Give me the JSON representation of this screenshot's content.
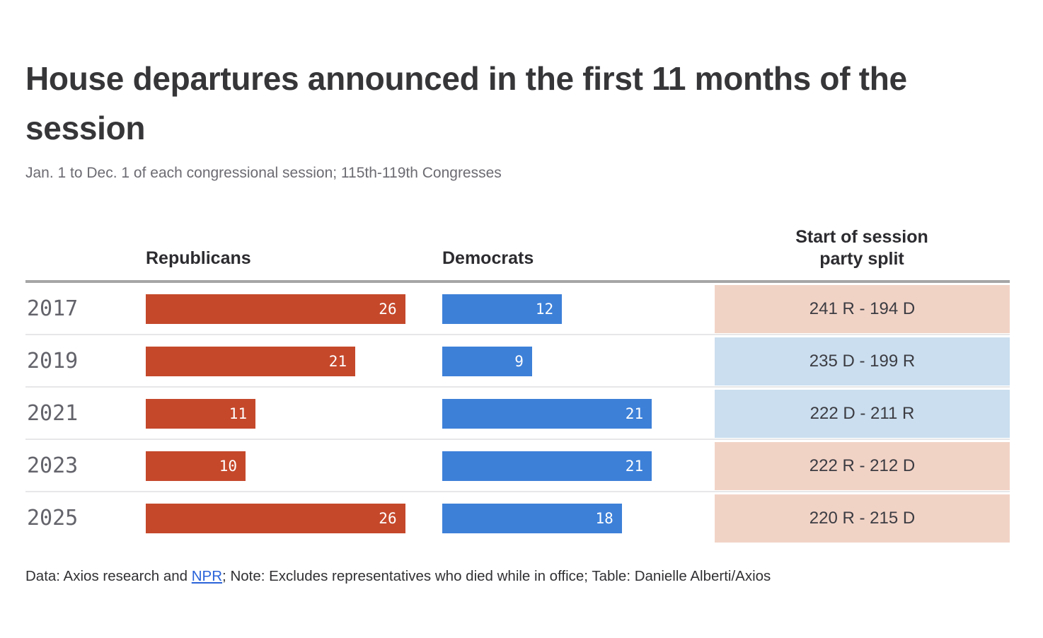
{
  "chart_data": {
    "type": "bar",
    "orientation": "horizontal",
    "title": "House departures announced in the first 11 months of the session",
    "subtitle": "Jan. 1 to Dec. 1 of each congressional session; 115th-119th Congresses",
    "categories": [
      "2017",
      "2019",
      "2021",
      "2023",
      "2025"
    ],
    "series": [
      {
        "name": "Republicans",
        "color": "#c5482b",
        "values": [
          26,
          21,
          11,
          10,
          26
        ]
      },
      {
        "name": "Democrats",
        "color": "#3d80d8",
        "values": [
          12,
          9,
          21,
          21,
          18
        ]
      }
    ],
    "xlim": [
      0,
      26
    ],
    "value_labels": "inside-bar-right",
    "grid": "off",
    "party_split_column": {
      "header": "Start of session party split",
      "cells": [
        {
          "label": "241 R - 194 D",
          "majority": "R"
        },
        {
          "label": "235 D - 199 R",
          "majority": "D"
        },
        {
          "label": "222 D - 211 R",
          "majority": "D"
        },
        {
          "label": "222 R - 212 D",
          "majority": "R"
        },
        {
          "label": "220 R - 215 D",
          "majority": "R"
        }
      ],
      "majority_bg": {
        "R": "#f1d3c6",
        "D": "#cadeef"
      }
    }
  },
  "columns": {
    "republicans": "Republicans",
    "democrats": "Democrats",
    "split": "Start of session party split"
  },
  "footer": {
    "prefix": "Data: Axios research and ",
    "link_text": "NPR",
    "suffix": "; Note: Excludes representatives who died while in office; Table: Danielle Alberti/Axios"
  }
}
